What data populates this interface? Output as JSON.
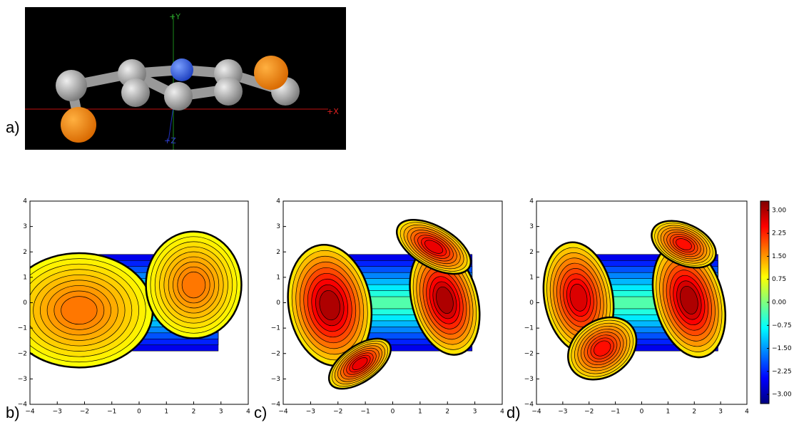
{
  "panel_a": {
    "label": "a)",
    "axis_y": "+Y",
    "axis_x": "+X",
    "axis_z": "+Z"
  },
  "plots": [
    {
      "label": "b)"
    },
    {
      "label": "c)"
    },
    {
      "label": "d)"
    }
  ],
  "xlim": [
    -4,
    4
  ],
  "ylim": [
    -4,
    4
  ],
  "xticks": [
    {
      "value": -4,
      "label": "−4"
    },
    {
      "value": -3,
      "label": "−3"
    },
    {
      "value": -2,
      "label": "−2"
    },
    {
      "value": -1,
      "label": "−1"
    },
    0,
    1,
    2,
    3,
    4
  ],
  "yticks": [
    {
      "value": -4,
      "label": "−4"
    },
    {
      "value": -3,
      "label": "−3"
    },
    {
      "value": -2,
      "label": "−2"
    },
    {
      "value": -1,
      "label": "−1"
    },
    0,
    1,
    2,
    3,
    4
  ],
  "colorbar": {
    "lim": [
      -3.3,
      3.3
    ],
    "ticks": [
      {
        "value": 3,
        "label": "3.00"
      },
      {
        "value": 2.25,
        "label": "2.25"
      },
      {
        "value": 1.5,
        "label": "1.50"
      },
      {
        "value": 0.75,
        "label": "0.75"
      },
      {
        "value": 0,
        "label": "0.00"
      },
      {
        "value": -0.75,
        "label": "−0.75"
      },
      {
        "value": -1.5,
        "label": "−1.50"
      },
      {
        "value": -2.25,
        "label": "−2.25"
      },
      {
        "value": -3,
        "label": "−3.00"
      }
    ],
    "colors": [
      "#00007f",
      "#0000ff",
      "#007fff",
      "#00ffff",
      "#7fff7f",
      "#ffff00",
      "#ff7f00",
      "#ff0000",
      "#7f0000"
    ]
  }
}
